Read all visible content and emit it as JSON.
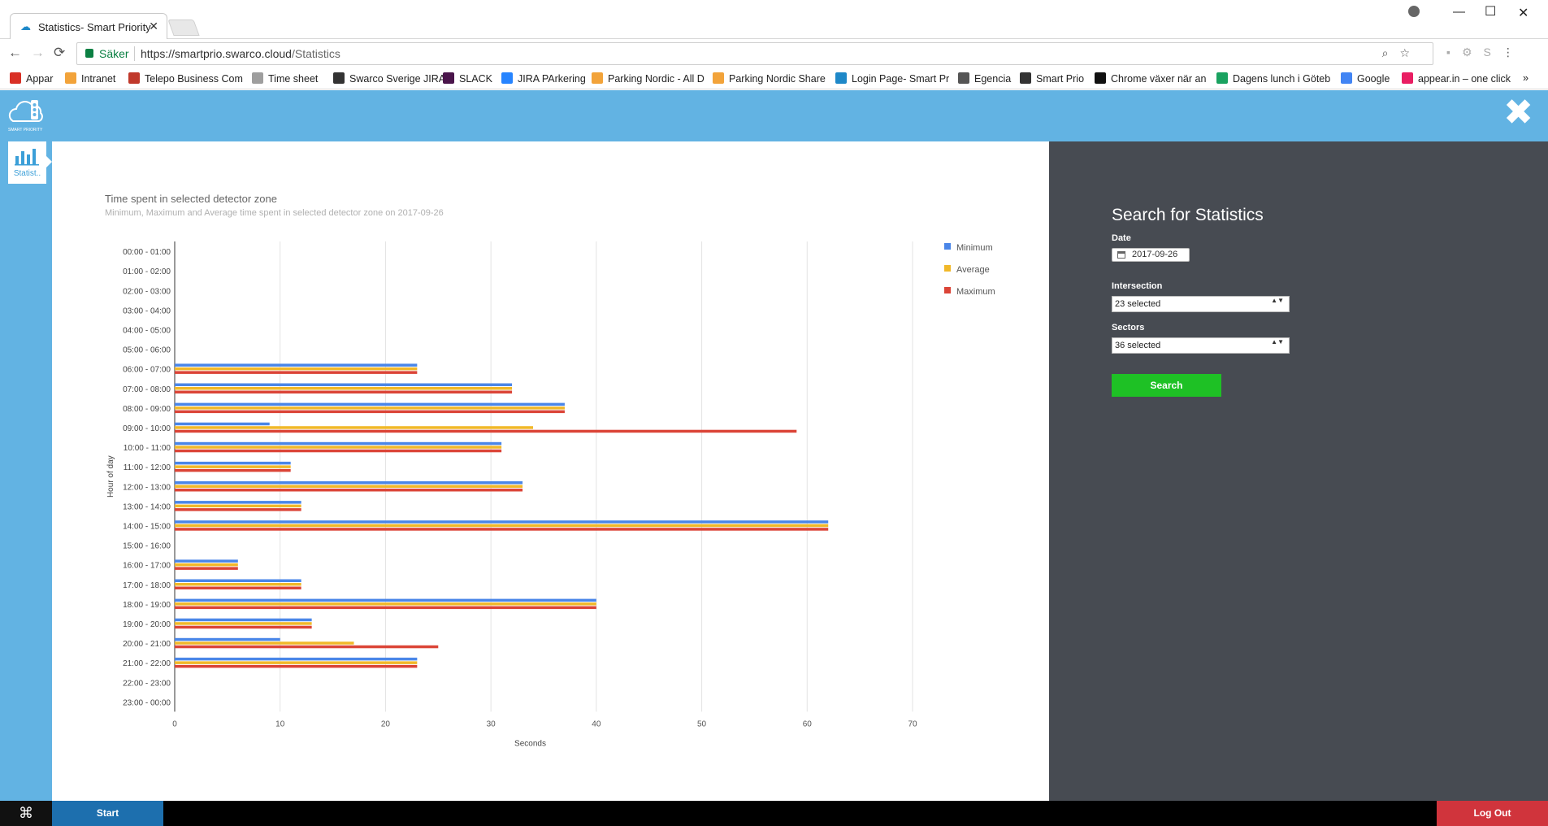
{
  "browser": {
    "tab_title": "Statistics- Smart Priority",
    "tab_close": "✕",
    "secure_label": "Säker",
    "url_base": "https://smartprio.swarco.cloud",
    "url_path": "/Statistics",
    "bookmarks": [
      {
        "label": "Appar",
        "color": "#d93025"
      },
      {
        "label": "Intranet",
        "color": "#f2a33a"
      },
      {
        "label": "Telepo Business Com",
        "color": "#c0392b"
      },
      {
        "label": "Time sheet",
        "color": "#9e9e9e"
      },
      {
        "label": "Swarco Sverige JIRA",
        "color": "#333333"
      },
      {
        "label": "SLACK",
        "color": "#4a154b"
      },
      {
        "label": "JIRA PArkering",
        "color": "#2684ff"
      },
      {
        "label": "Parking Nordic - All D",
        "color": "#f2a33a"
      },
      {
        "label": "Parking Nordic Share",
        "color": "#f2a33a"
      },
      {
        "label": "Login Page- Smart Pr",
        "color": "#1e88c8"
      },
      {
        "label": "Egencia",
        "color": "#555555"
      },
      {
        "label": "Smart Prio",
        "color": "#333333"
      },
      {
        "label": "Chrome växer när an",
        "color": "#111111"
      },
      {
        "label": "Dagens lunch i Göteb",
        "color": "#1aa260"
      },
      {
        "label": "Google",
        "color": "#4285f4"
      },
      {
        "label": "appear.in – one click",
        "color": "#e91e63"
      }
    ]
  },
  "header": {
    "close_label": "✖",
    "logo_text": "SMART PRIORITY"
  },
  "sidebar": {
    "items": [
      {
        "label": "Statist.."
      }
    ]
  },
  "chart_data": {
    "type": "bar",
    "orientation": "horizontal",
    "title": "Time spent in selected detector zone",
    "subtitle": "Minimum, Maximum and Average time spent in selected detector zone on 2017-09-26",
    "xlabel": "Seconds",
    "ylabel": "Hour of day",
    "xlim": [
      0,
      70
    ],
    "xticks": [
      0,
      10,
      20,
      30,
      40,
      50,
      60,
      70
    ],
    "grid": true,
    "legend_position": "top-right",
    "categories": [
      "00:00 - 01:00",
      "01:00 - 02:00",
      "02:00 - 03:00",
      "03:00 - 04:00",
      "04:00 - 05:00",
      "05:00 - 06:00",
      "06:00 - 07:00",
      "07:00 - 08:00",
      "08:00 - 09:00",
      "09:00 - 10:00",
      "10:00 - 11:00",
      "11:00 - 12:00",
      "12:00 - 13:00",
      "13:00 - 14:00",
      "14:00 - 15:00",
      "15:00 - 16:00",
      "16:00 - 17:00",
      "17:00 - 18:00",
      "18:00 - 19:00",
      "19:00 - 20:00",
      "20:00 - 21:00",
      "21:00 - 22:00",
      "22:00 - 23:00",
      "23:00 - 00:00"
    ],
    "series": [
      {
        "name": "Minimum",
        "color": "#4a86e8",
        "values": [
          0,
          0,
          0,
          0,
          0,
          0,
          23,
          32,
          37,
          9,
          31,
          11,
          33,
          12,
          62,
          0,
          6,
          12,
          40,
          13,
          10,
          23,
          0,
          0
        ]
      },
      {
        "name": "Average",
        "color": "#f1b829",
        "values": [
          0,
          0,
          0,
          0,
          0,
          0,
          23,
          32,
          37,
          34,
          31,
          11,
          33,
          12,
          62,
          0,
          6,
          12,
          40,
          13,
          17,
          23,
          0,
          0
        ]
      },
      {
        "name": "Maximum",
        "color": "#db4437",
        "values": [
          0,
          0,
          0,
          0,
          0,
          0,
          23,
          32,
          37,
          59,
          31,
          11,
          33,
          12,
          62,
          0,
          6,
          12,
          40,
          13,
          25,
          23,
          0,
          0
        ]
      }
    ]
  },
  "panel": {
    "title": "Search for Statistics",
    "date_label": "Date",
    "date_value": "2017-09-26",
    "intersection_label": "Intersection",
    "intersection_value": "23 selected",
    "sectors_label": "Sectors",
    "sectors_value": "36 selected",
    "select_arrow": "▲▼",
    "search_label": "Search"
  },
  "footer": {
    "start_label": "Start",
    "logout_label": "Log Out"
  }
}
